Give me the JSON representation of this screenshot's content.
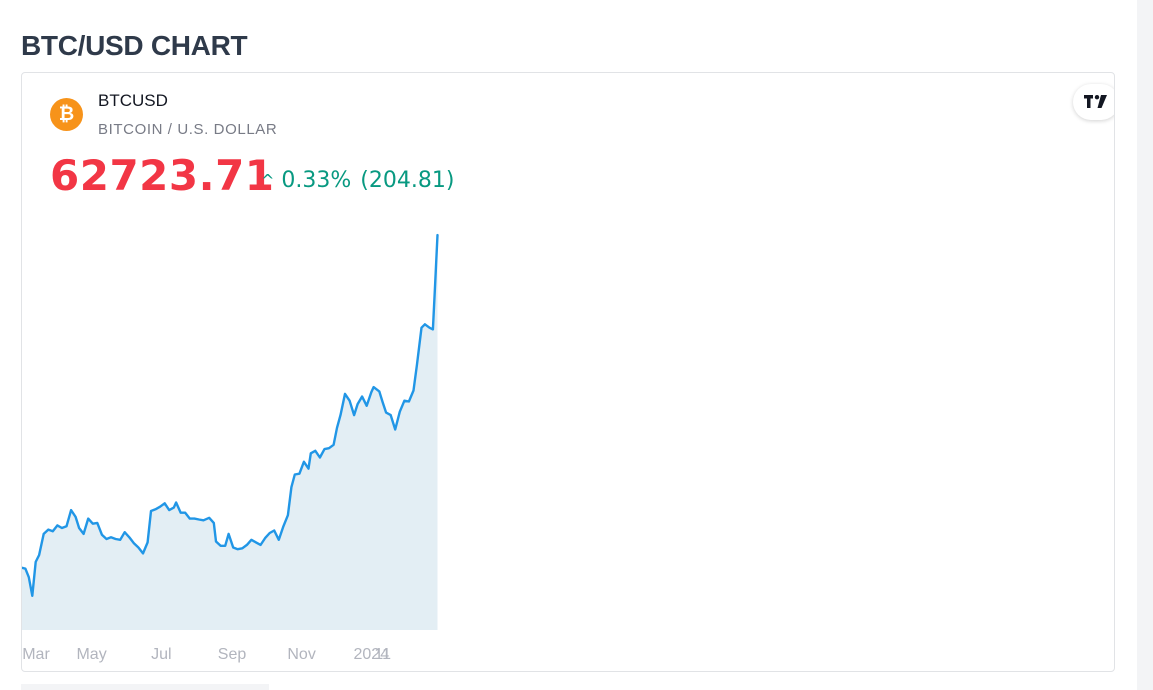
{
  "page": {
    "title": "BTC/USD CHART"
  },
  "widget": {
    "symbol": "BTCUSD",
    "description": "BITCOIN / U.S. DOLLAR",
    "price": "62723.71",
    "change_arrow": "^",
    "change_percent": "0.33%",
    "change_value": "(204.81)",
    "logo_glyph": "₿",
    "logo_icon": "bitcoin-icon",
    "brand_icon": "tradingview-logo-icon"
  },
  "colors": {
    "price_down": "#f23645",
    "change_up": "#089981",
    "line": "#2196e6",
    "area": "#e3eef4",
    "bitcoin_orange": "#f7931a"
  },
  "chart_data": {
    "type": "area",
    "x_ticks": [
      "Mar",
      "May",
      "Jul",
      "Sep",
      "Nov",
      "2024",
      "11"
    ],
    "ylim": [
      19000,
      64500
    ],
    "grid": false,
    "legend": "none",
    "x": [
      "2023-03-01",
      "2023-03-04",
      "2023-03-07",
      "2023-03-10",
      "2023-03-13",
      "2023-03-16",
      "2023-03-20",
      "2023-03-24",
      "2023-03-28",
      "2023-04-01",
      "2023-04-05",
      "2023-04-09",
      "2023-04-13",
      "2023-04-17",
      "2023-04-20",
      "2023-04-24",
      "2023-04-28",
      "2023-05-02",
      "2023-05-06",
      "2023-05-10",
      "2023-05-14",
      "2023-05-18",
      "2023-05-22",
      "2023-05-26",
      "2023-05-30",
      "2023-06-03",
      "2023-06-07",
      "2023-06-11",
      "2023-06-15",
      "2023-06-19",
      "2023-06-22",
      "2023-06-26",
      "2023-06-30",
      "2023-07-04",
      "2023-07-08",
      "2023-07-12",
      "2023-07-14",
      "2023-07-18",
      "2023-07-22",
      "2023-07-26",
      "2023-07-30",
      "2023-08-03",
      "2023-08-07",
      "2023-08-12",
      "2023-08-16",
      "2023-08-18",
      "2023-08-22",
      "2023-08-26",
      "2023-08-29",
      "2023-09-02",
      "2023-09-06",
      "2023-09-10",
      "2023-09-14",
      "2023-09-18",
      "2023-09-22",
      "2023-09-26",
      "2023-09-30",
      "2023-10-04",
      "2023-10-08",
      "2023-10-12",
      "2023-10-16",
      "2023-10-20",
      "2023-10-23",
      "2023-10-26",
      "2023-10-30",
      "2023-11-03",
      "2023-11-07",
      "2023-11-09",
      "2023-11-13",
      "2023-11-17",
      "2023-11-21",
      "2023-11-25",
      "2023-11-29",
      "2023-12-02",
      "2023-12-05",
      "2023-12-09",
      "2023-12-13",
      "2023-12-17",
      "2023-12-20",
      "2023-12-24",
      "2023-12-28",
      "2024-01-01",
      "2024-01-03",
      "2024-01-08",
      "2024-01-11",
      "2024-01-14",
      "2024-01-18",
      "2024-01-22",
      "2024-01-26",
      "2024-01-30",
      "2024-02-03",
      "2024-02-07",
      "2024-02-10",
      "2024-02-14",
      "2024-02-17",
      "2024-02-21",
      "2024-02-24",
      "2024-02-26",
      "2024-02-28"
    ],
    "series": [
      {
        "values": [
          23500,
          23400,
          22400,
          20200,
          24200,
          25000,
          27500,
          28000,
          27800,
          28500,
          28200,
          28400,
          30300,
          29500,
          28200,
          27500,
          29300,
          28700,
          28800,
          27400,
          26900,
          27100,
          26900,
          26800,
          27700,
          27100,
          26400,
          25900,
          25200,
          26500,
          30200,
          30400,
          30700,
          31100,
          30300,
          30600,
          31200,
          30000,
          30000,
          29300,
          29300,
          29200,
          29100,
          29400,
          28800,
          26600,
          26100,
          26100,
          27500,
          25900,
          25700,
          25800,
          26200,
          26800,
          26500,
          26200,
          27000,
          27600,
          27900,
          26800,
          28400,
          29700,
          33000,
          34500,
          34600,
          36000,
          35200,
          37000,
          37300,
          36500,
          37500,
          37600,
          38000,
          40000,
          41500,
          44000,
          43200,
          41500,
          42800,
          43700,
          42600,
          44200,
          44800,
          44300,
          43000,
          41800,
          41500,
          39800,
          41900,
          43200,
          43100,
          44400,
          47400,
          51800,
          52200,
          51800,
          51600,
          57100,
          62723.71
        ]
      }
    ]
  }
}
